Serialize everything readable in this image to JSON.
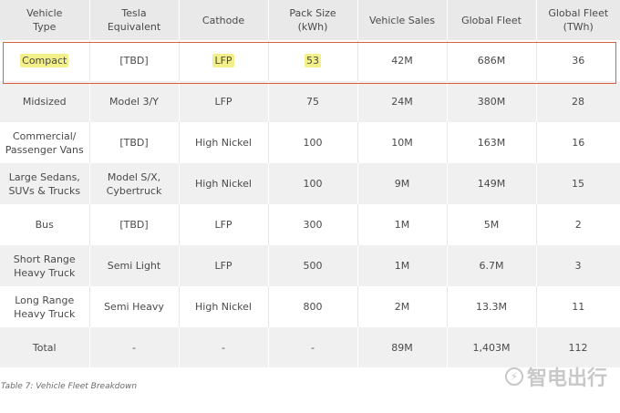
{
  "table": {
    "headers": [
      "Vehicle\nType",
      "Tesla\nEquivalent",
      "Cathode",
      "Pack Size\n(kWh)",
      "Vehicle Sales",
      "Global Fleet",
      "Global Fleet\n(TWh)"
    ],
    "rows": [
      [
        "Compact",
        "[TBD]",
        "LFP",
        "53",
        "42M",
        "686M",
        "36"
      ],
      [
        "Midsized",
        "Model 3/Y",
        "LFP",
        "75",
        "24M",
        "380M",
        "28"
      ],
      [
        "Commercial/\nPassenger Vans",
        "[TBD]",
        "High Nickel",
        "100",
        "10M",
        "163M",
        "16"
      ],
      [
        "Large Sedans,\nSUVs & Trucks",
        "Model S/X,\nCybertruck",
        "High Nickel",
        "100",
        "9M",
        "149M",
        "15"
      ],
      [
        "Bus",
        "[TBD]",
        "LFP",
        "300",
        "1M",
        "5M",
        "2"
      ],
      [
        "Short Range\nHeavy Truck",
        "Semi Light",
        "LFP",
        "500",
        "1M",
        "6.7M",
        "3"
      ],
      [
        "Long Range\nHeavy Truck",
        "Semi Heavy",
        "High Nickel",
        "800",
        "2M",
        "13.3M",
        "11"
      ]
    ],
    "total": [
      "Total",
      "-",
      "-",
      "-",
      "89M",
      "1,403M",
      "112"
    ],
    "highlighted_cells": [
      "Compact",
      "LFP",
      "53"
    ],
    "highlight_color": "#f3f08a",
    "box_color": "#d9603a"
  },
  "caption": "Table 7: Vehicle Fleet Breakdown",
  "watermark": {
    "text": "智电出行",
    "logo_icon": "lightning-circle-icon",
    "logo_glyph": "⚡"
  }
}
